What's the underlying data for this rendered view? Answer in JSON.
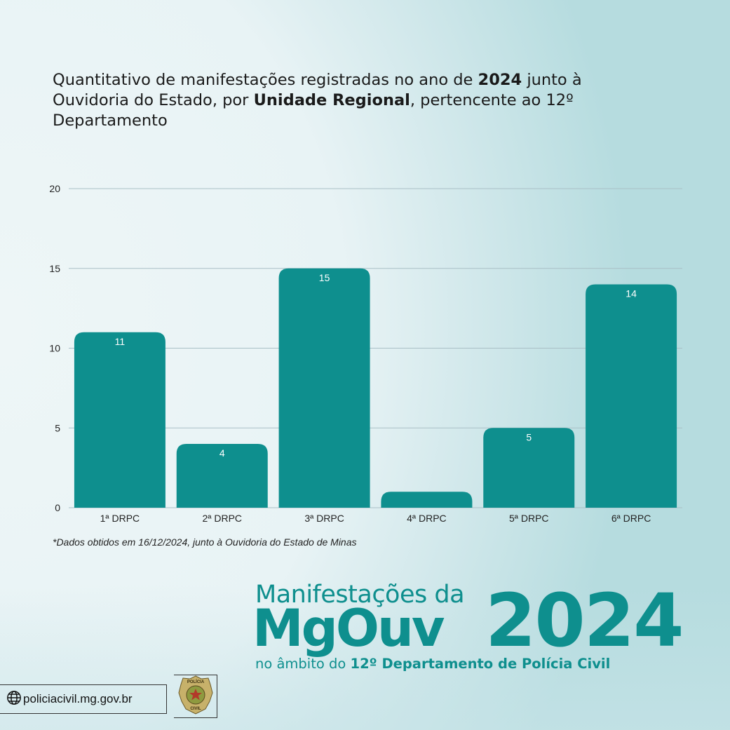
{
  "header": {
    "title_part1": "Quantitativo de manifestações registradas no ano de ",
    "title_bold1": "2024",
    "title_part2": " junto à Ouvidoria do Estado, por ",
    "title_bold2": "Unidade Regional",
    "title_part3": ", pertencente ao 12º Departamento"
  },
  "chart_data": {
    "type": "bar",
    "categories": [
      "1ª DRPC",
      "2ª DRPC",
      "3ª DRPC",
      "4ª DRPC",
      "5ª DRPC",
      "6ª DRPC"
    ],
    "values": [
      11,
      4,
      15,
      1,
      5,
      14
    ],
    "data_labels": [
      "11",
      "4",
      "15",
      "",
      "5",
      "14"
    ],
    "ylim": [
      0,
      20
    ],
    "yticks": [
      0,
      5,
      10,
      15,
      20
    ],
    "grid": true,
    "bar_color": "#0e8f8e",
    "grid_color": "#a9bfc6"
  },
  "footnote": "*Dados obtidos em 16/12/2024, junto à Ouvidoria do Estado de Minas",
  "brand": {
    "line1": "Manifestações da",
    "line2": "MgOuv",
    "year": "2024",
    "line3_part1": "no âmbito do ",
    "line3_bold": "12º Departamento de Polícia Civil",
    "accent_color": "#0e8f8e"
  },
  "footer": {
    "website": "policiacivil.mg.gov.br",
    "globe_icon": "globe-icon",
    "seal_icon": "police-badge-icon",
    "seal_text_top": "POLÍCIA",
    "seal_text_bottom": "CIVIL"
  }
}
